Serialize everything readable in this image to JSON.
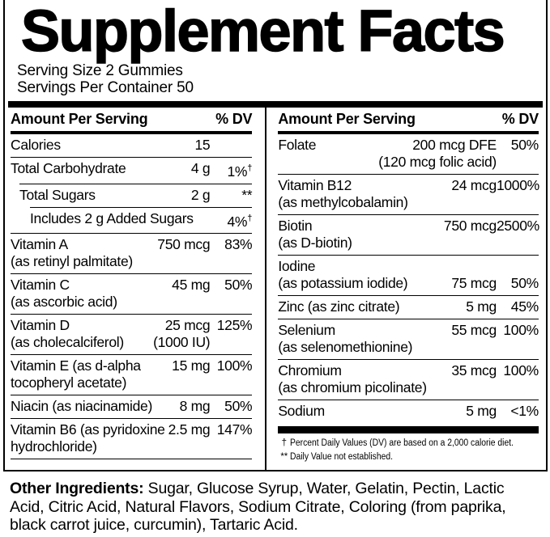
{
  "title": "Supplement Facts",
  "serving": {
    "size": "Serving Size 2 Gummies",
    "per_container": "Servings Per Container 50"
  },
  "colors": {
    "ink": "#000000",
    "paper": "#ffffff"
  },
  "columns": [
    {
      "header": {
        "amount_label": "Amount Per Serving",
        "dv_label": "% DV"
      },
      "trailing_rule": true,
      "rows": [
        {
          "name_lines": [
            "Calories"
          ],
          "amount_lines": [
            "15"
          ],
          "dv": "",
          "indent": 0
        },
        {
          "name_lines": [
            "Total Carbohydrate"
          ],
          "amount_lines": [
            "4 g"
          ],
          "dv": "1%",
          "dv_sup": "†",
          "indent": 0
        },
        {
          "name_lines": [
            "Total Sugars"
          ],
          "amount_lines": [
            "2 g"
          ],
          "dv": "**",
          "indent": 1
        },
        {
          "name_lines": [
            "Includes 2 g Added Sugars"
          ],
          "amount_lines": [],
          "dv": "4%",
          "dv_sup": "†",
          "indent": 2
        },
        {
          "name_lines": [
            "Vitamin A",
            "(as retinyl palmitate)"
          ],
          "amount_lines": [
            "750 mcg"
          ],
          "dv": "83%",
          "indent": 0
        },
        {
          "name_lines": [
            "Vitamin C",
            "(as ascorbic acid)"
          ],
          "amount_lines": [
            "45 mg"
          ],
          "dv": "50%",
          "indent": 0
        },
        {
          "name_lines": [
            "Vitamin D",
            "(as cholecalciferol)"
          ],
          "amount_lines": [
            "25 mcg",
            "(1000 IU)"
          ],
          "dv": "125%",
          "indent": 0
        },
        {
          "name_lines": [
            "Vitamin E (as d-alpha",
            "tocopheryl acetate)"
          ],
          "amount_lines": [
            "15 mg"
          ],
          "dv": "100%",
          "indent": 0
        },
        {
          "name_lines": [
            "Niacin (as niacinamide)"
          ],
          "amount_lines": [
            "8 mg"
          ],
          "dv": "50%",
          "indent": 0
        },
        {
          "name_lines": [
            "Vitamin B6 (as pyridoxine",
            "hydrochloride)"
          ],
          "amount_lines": [
            "2.5 mg"
          ],
          "dv": "147%",
          "indent": 0
        }
      ]
    },
    {
      "header": {
        "amount_label": "Amount Per Serving",
        "dv_label": "% DV"
      },
      "footnote_bar": true,
      "rows": [
        {
          "name_lines": [
            "Folate"
          ],
          "amount_lines": [
            "200 mcg DFE",
            "(120 mcg folic acid)"
          ],
          "dv": "50%",
          "indent": 0
        },
        {
          "name_lines": [
            "Vitamin B12",
            "(as methylcobalamin)"
          ],
          "amount_lines": [
            "24 mcg"
          ],
          "dv": "1000%",
          "indent": 0
        },
        {
          "name_lines": [
            "Biotin",
            "(as D-biotin)"
          ],
          "amount_lines": [
            "750 mcg"
          ],
          "dv": "2500%",
          "indent": 0
        },
        {
          "name_lines": [
            "Iodine",
            "(as potassium iodide)"
          ],
          "amount_lines": [
            "75 mcg"
          ],
          "dv": "50%",
          "indent": 0,
          "amount_bottom": true
        },
        {
          "name_lines": [
            "Zinc (as zinc citrate)"
          ],
          "amount_lines": [
            "5 mg"
          ],
          "dv": "45%",
          "indent": 0
        },
        {
          "name_lines": [
            "Selenium",
            "(as selenomethionine)"
          ],
          "amount_lines": [
            "55 mcg"
          ],
          "dv": "100%",
          "indent": 0
        },
        {
          "name_lines": [
            "Chromium",
            "(as chromium picolinate)"
          ],
          "amount_lines": [
            "35 mcg"
          ],
          "dv": "100%",
          "indent": 0
        },
        {
          "name_lines": [
            "Sodium"
          ],
          "amount_lines": [
            "5 mg"
          ],
          "dv": "<1%",
          "indent": 0
        }
      ],
      "footnotes": [
        {
          "marker": "†",
          "text": "Percent Daily Values (DV) are based on a 2,000 calorie diet."
        },
        {
          "marker": "**",
          "text": "Daily Value not established."
        }
      ]
    }
  ],
  "other_ingredients": {
    "label": "Other Ingredients:",
    "text": " Sugar, Glucose Syrup, Water, Gelatin, Pectin, Lactic Acid, Citric Acid, Natural Flavors, Sodium Citrate, Coloring (from paprika, black carrot juice, curcumin), Tartaric Acid."
  }
}
